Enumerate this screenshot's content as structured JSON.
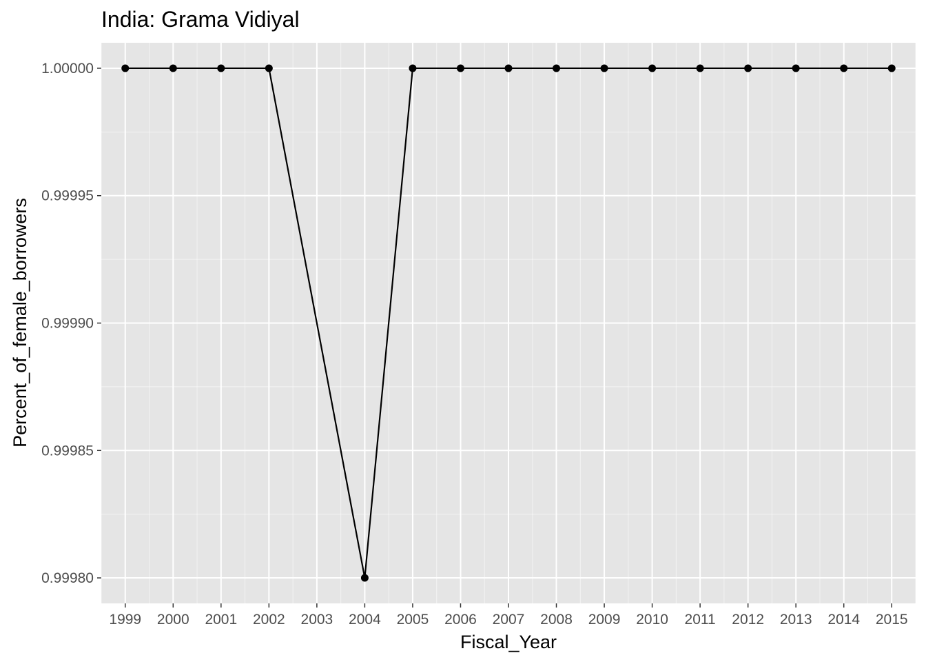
{
  "chart_data": {
    "type": "line",
    "title": "India:  Grama Vidiyal",
    "xlabel": "Fiscal_Year",
    "ylabel": "Percent_of_female_borrowers",
    "x": [
      1999,
      2000,
      2001,
      2002,
      2004,
      2005,
      2006,
      2007,
      2008,
      2009,
      2010,
      2011,
      2012,
      2013,
      2014,
      2015
    ],
    "y": [
      1.0,
      1.0,
      1.0,
      1.0,
      0.9998,
      1.0,
      1.0,
      1.0,
      1.0,
      1.0,
      1.0,
      1.0,
      1.0,
      1.0,
      1.0,
      1.0
    ],
    "x_ticks": [
      "1999",
      "2000",
      "2001",
      "2002",
      "2003",
      "2004",
      "2005",
      "2006",
      "2007",
      "2008",
      "2009",
      "2010",
      "2011",
      "2012",
      "2013",
      "2014",
      "2015"
    ],
    "y_ticks": [
      "0.99980",
      "0.99985",
      "0.99990",
      "0.99995",
      "1.00000"
    ],
    "xlim": [
      1998.5,
      2015.5
    ],
    "ylim": [
      0.99979,
      1.00001
    ],
    "grid": true,
    "colors": {
      "panel_background": "#e5e5e5",
      "grid_major": "#ffffff",
      "line": "#000000",
      "point": "#000000",
      "tick_text": "#4d4d4d"
    }
  }
}
